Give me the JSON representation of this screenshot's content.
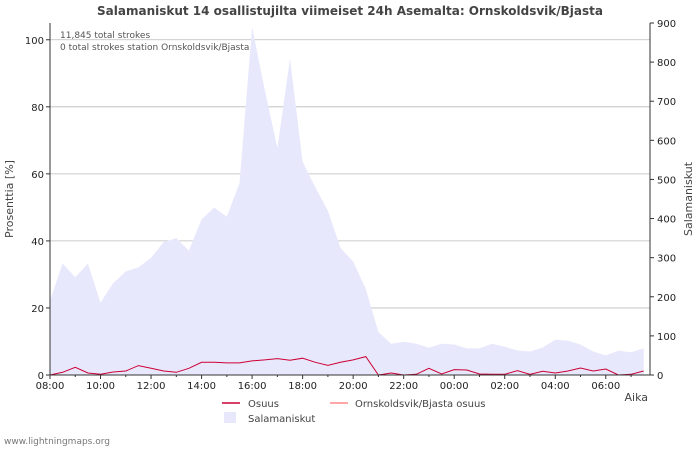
{
  "chart_data": {
    "type": "area",
    "title": "Salamaniskut 14 osallistujilta viimeiset 24h Asemalta: Ornskoldsvik/Bjasta",
    "xlabel": "Aika",
    "ylabel_left": "Prosenttia  [%]",
    "ylabel_right": "Salamaniskut",
    "ylim_left": [
      0,
      105
    ],
    "ylim_right": [
      0,
      900
    ],
    "yticks_left": [
      "0",
      "20",
      "40",
      "60",
      "80",
      "100"
    ],
    "yticks_right": [
      "0",
      "100",
      "200",
      "300",
      "400",
      "500",
      "600",
      "700",
      "800",
      "900"
    ],
    "x_tick_labels": [
      "08:00",
      "10:00",
      "12:00",
      "14:00",
      "16:00",
      "18:00",
      "20:00",
      "22:00",
      "00:00",
      "02:00",
      "04:00",
      "06:00"
    ],
    "annotations": [
      "11,845 total strokes",
      "0 total strokes station Ornskoldsvik/Bjasta"
    ],
    "x_hours": [
      0,
      0.5,
      1,
      1.5,
      2,
      2.5,
      3,
      3.5,
      4,
      4.5,
      5,
      5.5,
      6,
      6.5,
      7,
      7.5,
      8,
      8.5,
      9,
      9.5,
      10,
      10.5,
      11,
      11.5,
      12,
      12.5,
      13,
      13.5,
      14,
      14.5,
      15,
      15.5,
      16,
      16.5,
      17,
      17.5,
      18,
      18.5,
      19,
      19.5,
      20,
      20.5,
      21,
      21.5,
      22,
      22.5,
      23,
      23.5
    ],
    "series": [
      {
        "name": "Osuus",
        "color": "#cc0033",
        "axis": "left",
        "values": [
          0,
          0.8,
          2.3,
          0.6,
          0.2,
          0.9,
          1.2,
          2.8,
          2.0,
          1.2,
          0.8,
          2.0,
          3.8,
          3.8,
          3.6,
          3.6,
          4.2,
          4.5,
          4.9,
          4.4,
          5.0,
          3.8,
          2.9,
          3.8,
          4.5,
          5.5,
          0,
          0.6,
          0,
          0.2,
          2.0,
          0.3,
          1.6,
          1.5,
          0.3,
          0.2,
          0.2,
          1.3,
          0.2,
          1.1,
          0.6,
          1.2,
          2.1,
          1.2,
          1.8,
          0,
          0.2,
          1.2
        ]
      },
      {
        "name": "Ornskoldsvik/Bjasta osuus",
        "color": "#ff8888",
        "axis": "left",
        "values": []
      },
      {
        "name": "Salamaniskut",
        "color": "#e8e8fc",
        "axis": "right",
        "values": [
          190,
          285,
          250,
          285,
          185,
          235,
          265,
          275,
          300,
          340,
          350,
          318,
          398,
          428,
          405,
          490,
          890,
          730,
          580,
          810,
          545,
          480,
          420,
          325,
          290,
          220,
          110,
          80,
          85,
          80,
          70,
          80,
          78,
          68,
          68,
          80,
          72,
          63,
          60,
          70,
          90,
          88,
          78,
          60,
          50,
          62,
          58,
          68
        ]
      }
    ]
  },
  "footer": {
    "credit": "www.lightningmaps.org"
  }
}
